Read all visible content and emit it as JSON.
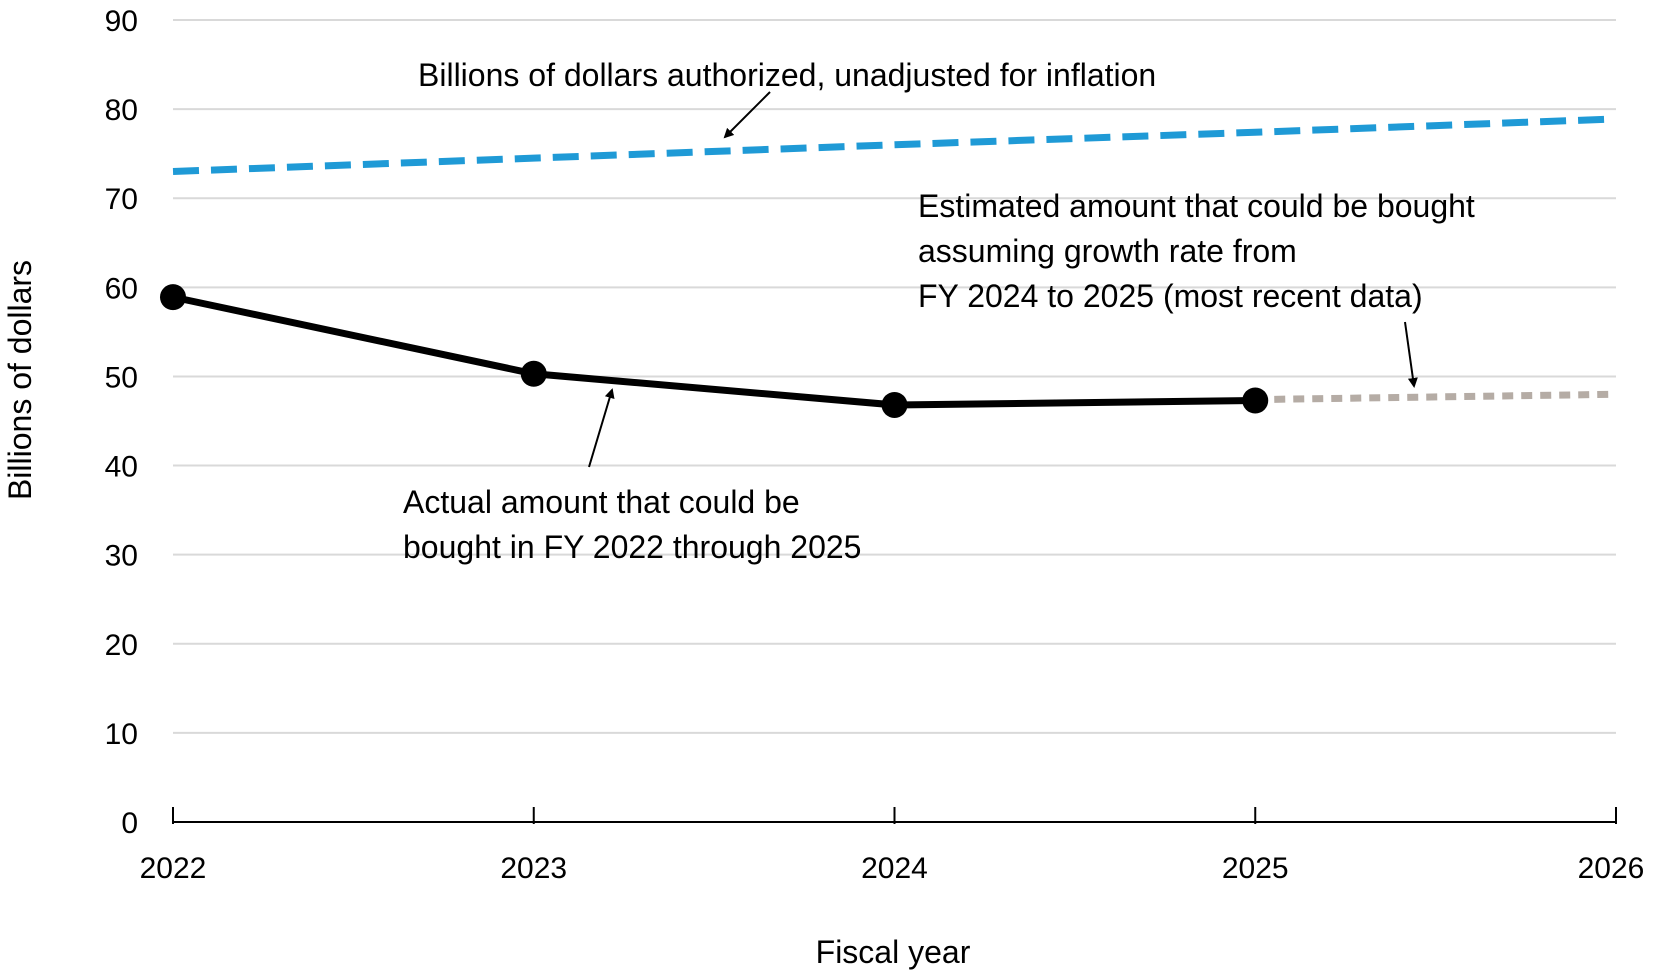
{
  "chart_data": {
    "type": "line",
    "title": "",
    "xlabel": "Fiscal year",
    "ylabel": "Billions of dollars",
    "x": [
      2022,
      2023,
      2024,
      2025,
      2026
    ],
    "x_tick_labels": [
      "2022",
      "2023",
      "2024",
      "2025",
      "2026"
    ],
    "xlim": [
      2022,
      2026
    ],
    "ylim": [
      0,
      90
    ],
    "y_ticks": [
      0,
      10,
      20,
      30,
      40,
      50,
      60,
      70,
      80,
      90
    ],
    "y_tick_labels": [
      "0",
      "10",
      "20",
      "30",
      "40",
      "50",
      "60",
      "70",
      "80",
      "90"
    ],
    "grid": true,
    "legend": "none",
    "series": [
      {
        "key": "authorized",
        "x": [
          2022,
          2023,
          2024,
          2025,
          2026
        ],
        "values": [
          73,
          74.5,
          76,
          77.4,
          78.9
        ],
        "style": "dashed",
        "color": "#1f9ad6"
      },
      {
        "key": "actual",
        "x": [
          2022,
          2023,
          2024,
          2025
        ],
        "values": [
          58.9,
          50.3,
          46.8,
          47.3
        ],
        "style": "solid-markers",
        "color": "#000000"
      },
      {
        "key": "estimated",
        "x": [
          2025,
          2026
        ],
        "values": [
          47.4,
          48.0
        ],
        "style": "dotted",
        "color": "#b5aca5"
      }
    ],
    "annotations": [
      {
        "key": "authorized",
        "lines": [
          "Billions of dollars authorized, unadjusted for inflation"
        ]
      },
      {
        "key": "estimated",
        "lines": [
          "Estimated amount that could be bought",
          "assuming growth rate from",
          "FY 2024 to 2025 (most recent data)"
        ]
      },
      {
        "key": "actual",
        "lines": [
          "Actual amount that could be",
          "bought in FY 2022 through 2025"
        ]
      }
    ]
  }
}
